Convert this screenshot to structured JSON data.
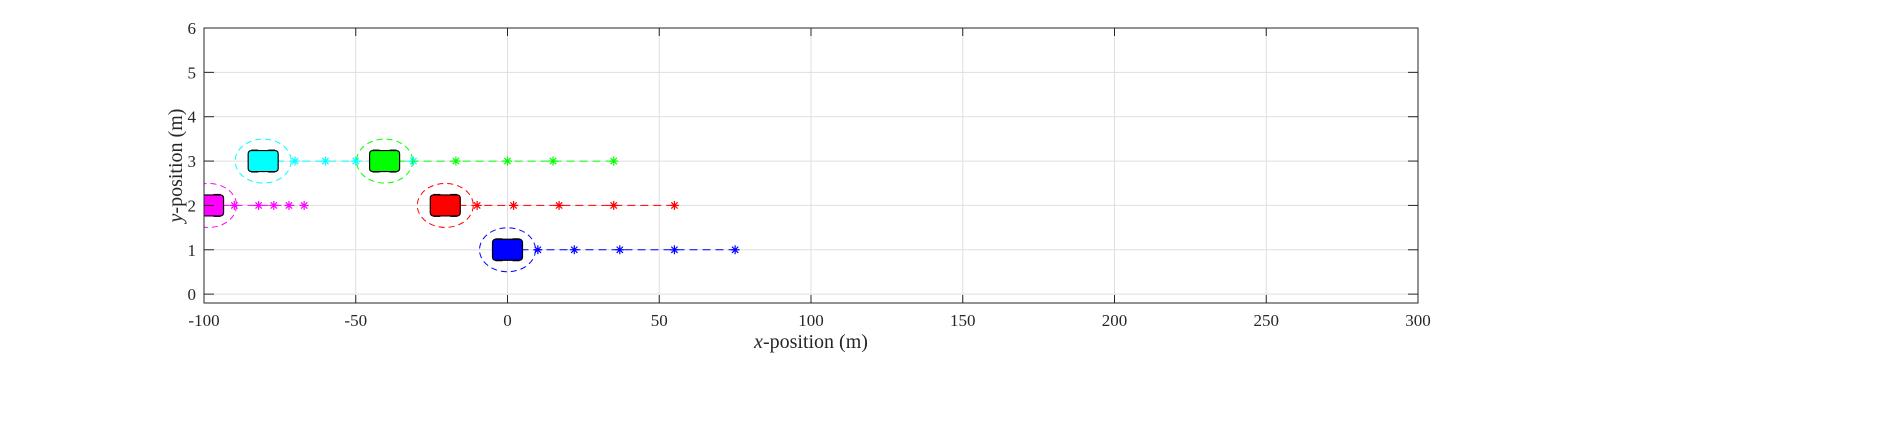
{
  "chart_data": {
    "type": "scatter",
    "title": "",
    "xlabel_var": "x",
    "xlabel_text": "-position (m)",
    "ylabel_var": "y",
    "ylabel_text": "-position (m)",
    "xlim": [
      -100,
      300
    ],
    "ylim": [
      -0.2,
      6
    ],
    "xticks": [
      -100,
      -50,
      0,
      50,
      100,
      150,
      200,
      250,
      300
    ],
    "yticks": [
      0,
      1,
      2,
      3,
      4,
      5,
      6
    ],
    "grid": true,
    "vehicles": [
      {
        "name": "cyan",
        "color": "#00ffff",
        "x": -80.5,
        "y": 3,
        "trajectory_x": [
          -70,
          -60,
          -50,
          -40,
          -31
        ]
      },
      {
        "name": "green",
        "color": "#00ff00",
        "x": -40.5,
        "y": 3,
        "trajectory_x": [
          -40,
          -17,
          0,
          15,
          35
        ]
      },
      {
        "name": "magenta",
        "color": "#ff00ff",
        "x": -98.5,
        "y": 2,
        "trajectory_x": [
          -90,
          -82,
          -77,
          -72,
          -67
        ]
      },
      {
        "name": "red",
        "color": "#ff0000",
        "x": -20.5,
        "y": 2,
        "trajectory_x": [
          -10,
          2,
          17,
          35,
          55
        ]
      },
      {
        "name": "blue",
        "color": "#0000ff",
        "x": 0,
        "y": 1,
        "trajectory_x": [
          10,
          22,
          37,
          55,
          75
        ]
      }
    ]
  }
}
